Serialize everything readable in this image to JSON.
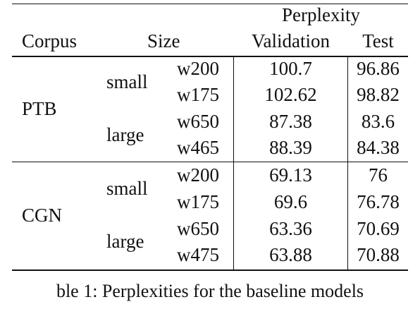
{
  "table": {
    "header": {
      "group_label": "Perplexity",
      "col_corpus": "Corpus",
      "col_size": "Size",
      "col_validation": "Validation",
      "col_test": "Test"
    },
    "corpora": [
      {
        "name": "PTB",
        "groups": [
          {
            "size": "small",
            "rows": [
              {
                "width": "w200",
                "validation": "100.7",
                "test": "96.86"
              },
              {
                "width": "w175",
                "validation": "102.62",
                "test": "98.82"
              }
            ]
          },
          {
            "size": "large",
            "rows": [
              {
                "width": "w650",
                "validation": "87.38",
                "test": "83.6"
              },
              {
                "width": "w465",
                "validation": "88.39",
                "test": "84.38"
              }
            ]
          }
        ]
      },
      {
        "name": "CGN",
        "groups": [
          {
            "size": "small",
            "rows": [
              {
                "width": "w200",
                "validation": "69.13",
                "test": "76"
              },
              {
                "width": "w175",
                "validation": "69.6",
                "test": "76.78"
              }
            ]
          },
          {
            "size": "large",
            "rows": [
              {
                "width": "w650",
                "validation": "63.36",
                "test": "70.69"
              },
              {
                "width": "w475",
                "validation": "63.88",
                "test": "70.88"
              }
            ]
          }
        ]
      }
    ]
  },
  "caption": "ble 1: Perplexities for the baseline models"
}
